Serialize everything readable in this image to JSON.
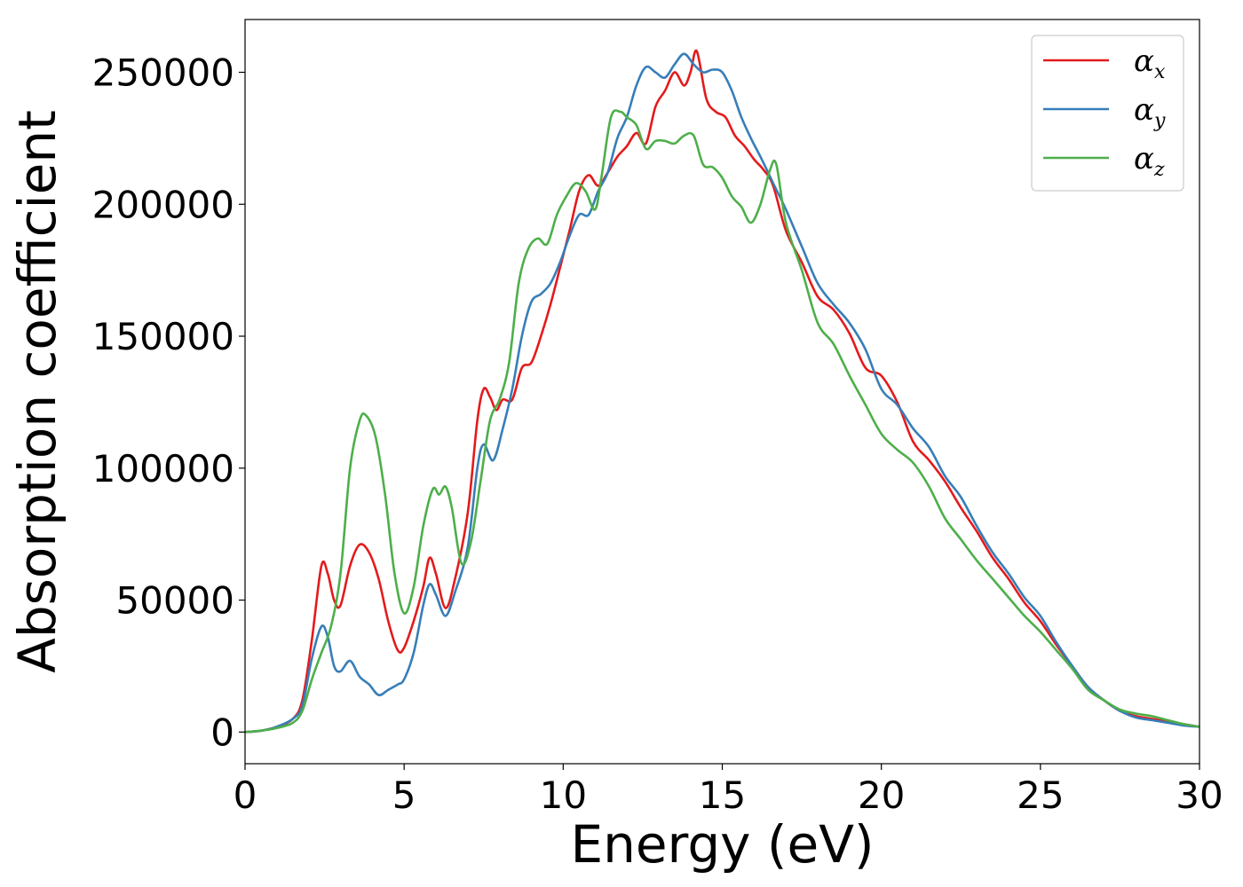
{
  "chart_data": {
    "type": "line",
    "title": "",
    "xlabel": "Energy (eV)",
    "ylabel": "Absorption coefficient",
    "xlim": [
      0,
      30
    ],
    "ylim": [
      -12000,
      270000
    ],
    "xticks": [
      0,
      5,
      10,
      15,
      20,
      25,
      30
    ],
    "xtick_labels": [
      "0",
      "5",
      "10",
      "15",
      "20",
      "25",
      "30"
    ],
    "yticks": [
      0,
      50000,
      100000,
      150000,
      200000,
      250000
    ],
    "ytick_labels": [
      "0",
      "50000",
      "100000",
      "150000",
      "200000",
      "250000"
    ],
    "grid": false,
    "legend_position": "top-right",
    "series": [
      {
        "name": "α_x",
        "base": "α",
        "sub": "x",
        "color": "#e41a1c",
        "points": [
          [
            0,
            0
          ],
          [
            0.5,
            500
          ],
          [
            1,
            2000
          ],
          [
            1.5,
            5000
          ],
          [
            1.8,
            12000
          ],
          [
            2.1,
            35000
          ],
          [
            2.4,
            63000
          ],
          [
            2.6,
            60000
          ],
          [
            2.8,
            50000
          ],
          [
            3.0,
            48000
          ],
          [
            3.3,
            63000
          ],
          [
            3.6,
            71000
          ],
          [
            3.9,
            68000
          ],
          [
            4.2,
            58000
          ],
          [
            4.5,
            42000
          ],
          [
            4.8,
            31000
          ],
          [
            5.0,
            32000
          ],
          [
            5.3,
            42000
          ],
          [
            5.6,
            55000
          ],
          [
            5.8,
            66000
          ],
          [
            6.0,
            60000
          ],
          [
            6.3,
            47000
          ],
          [
            6.6,
            58000
          ],
          [
            7.0,
            83000
          ],
          [
            7.3,
            118000
          ],
          [
            7.5,
            130000
          ],
          [
            7.7,
            127000
          ],
          [
            7.9,
            122000
          ],
          [
            8.1,
            126000
          ],
          [
            8.4,
            126000
          ],
          [
            8.7,
            138000
          ],
          [
            9.0,
            140000
          ],
          [
            9.3,
            150000
          ],
          [
            9.6,
            162000
          ],
          [
            9.9,
            176000
          ],
          [
            10.2,
            190000
          ],
          [
            10.5,
            205000
          ],
          [
            10.8,
            211000
          ],
          [
            11.1,
            207000
          ],
          [
            11.4,
            212000
          ],
          [
            11.7,
            218000
          ],
          [
            12.0,
            222000
          ],
          [
            12.3,
            227000
          ],
          [
            12.6,
            223000
          ],
          [
            12.9,
            237000
          ],
          [
            13.2,
            243000
          ],
          [
            13.5,
            250000
          ],
          [
            13.8,
            245000
          ],
          [
            14.0,
            250000
          ],
          [
            14.2,
            258000
          ],
          [
            14.5,
            240000
          ],
          [
            14.8,
            235000
          ],
          [
            15.1,
            233000
          ],
          [
            15.4,
            226000
          ],
          [
            15.7,
            222000
          ],
          [
            16.0,
            217000
          ],
          [
            16.3,
            213000
          ],
          [
            16.6,
            207000
          ],
          [
            17.0,
            190000
          ],
          [
            17.5,
            178000
          ],
          [
            18.0,
            165000
          ],
          [
            18.5,
            160000
          ],
          [
            19.0,
            151000
          ],
          [
            19.5,
            138000
          ],
          [
            20.0,
            135000
          ],
          [
            20.5,
            125000
          ],
          [
            21.0,
            110000
          ],
          [
            21.5,
            103000
          ],
          [
            22.0,
            95000
          ],
          [
            22.5,
            85000
          ],
          [
            23.0,
            76000
          ],
          [
            23.5,
            66000
          ],
          [
            24.0,
            58000
          ],
          [
            24.5,
            49000
          ],
          [
            25.0,
            42000
          ],
          [
            25.5,
            33000
          ],
          [
            26.0,
            25000
          ],
          [
            26.5,
            17000
          ],
          [
            27.0,
            12000
          ],
          [
            27.5,
            8000
          ],
          [
            28.0,
            6000
          ],
          [
            28.5,
            5000
          ],
          [
            29.0,
            4000
          ],
          [
            29.5,
            3000
          ],
          [
            30.0,
            2000
          ]
        ]
      },
      {
        "name": "α_y",
        "base": "α",
        "sub": "y",
        "color": "#377eb8",
        "points": [
          [
            0,
            0
          ],
          [
            0.5,
            500
          ],
          [
            1,
            2000
          ],
          [
            1.5,
            5000
          ],
          [
            1.8,
            10000
          ],
          [
            2.1,
            28000
          ],
          [
            2.4,
            40000
          ],
          [
            2.6,
            36000
          ],
          [
            2.8,
            25000
          ],
          [
            3.0,
            23000
          ],
          [
            3.3,
            27000
          ],
          [
            3.6,
            21000
          ],
          [
            3.9,
            18000
          ],
          [
            4.2,
            14000
          ],
          [
            4.5,
            16000
          ],
          [
            4.8,
            18000
          ],
          [
            5.0,
            20000
          ],
          [
            5.3,
            30000
          ],
          [
            5.6,
            48000
          ],
          [
            5.8,
            56000
          ],
          [
            6.0,
            52000
          ],
          [
            6.3,
            44000
          ],
          [
            6.6,
            53000
          ],
          [
            7.0,
            70000
          ],
          [
            7.3,
            100000
          ],
          [
            7.5,
            109000
          ],
          [
            7.8,
            103000
          ],
          [
            8.1,
            115000
          ],
          [
            8.4,
            130000
          ],
          [
            8.7,
            150000
          ],
          [
            9.0,
            163000
          ],
          [
            9.3,
            166000
          ],
          [
            9.6,
            170000
          ],
          [
            9.9,
            178000
          ],
          [
            10.2,
            188000
          ],
          [
            10.5,
            196000
          ],
          [
            10.8,
            196000
          ],
          [
            11.1,
            205000
          ],
          [
            11.4,
            212000
          ],
          [
            11.7,
            225000
          ],
          [
            12.0,
            233000
          ],
          [
            12.3,
            245000
          ],
          [
            12.6,
            252000
          ],
          [
            12.9,
            250000
          ],
          [
            13.2,
            248000
          ],
          [
            13.5,
            253000
          ],
          [
            13.8,
            257000
          ],
          [
            14.1,
            253000
          ],
          [
            14.4,
            250000
          ],
          [
            14.7,
            251000
          ],
          [
            15.0,
            250000
          ],
          [
            15.3,
            243000
          ],
          [
            15.6,
            233000
          ],
          [
            15.9,
            225000
          ],
          [
            16.2,
            218000
          ],
          [
            16.6,
            208000
          ],
          [
            17.0,
            198000
          ],
          [
            17.5,
            184000
          ],
          [
            18.0,
            170000
          ],
          [
            18.5,
            162000
          ],
          [
            19.0,
            155000
          ],
          [
            19.5,
            145000
          ],
          [
            20.0,
            130000
          ],
          [
            20.5,
            124000
          ],
          [
            21.0,
            115000
          ],
          [
            21.5,
            108000
          ],
          [
            22.0,
            97000
          ],
          [
            22.5,
            89000
          ],
          [
            23.0,
            78000
          ],
          [
            23.5,
            68000
          ],
          [
            24.0,
            60000
          ],
          [
            24.5,
            51000
          ],
          [
            25.0,
            44000
          ],
          [
            25.5,
            34000
          ],
          [
            26.0,
            25000
          ],
          [
            26.5,
            17000
          ],
          [
            27.0,
            12000
          ],
          [
            27.5,
            8000
          ],
          [
            28.0,
            5500
          ],
          [
            28.5,
            4500
          ],
          [
            29.0,
            3500
          ],
          [
            29.5,
            2500
          ],
          [
            30.0,
            2000
          ]
        ]
      },
      {
        "name": "α_z",
        "base": "α",
        "sub": "z",
        "color": "#4daf4a",
        "points": [
          [
            0,
            0
          ],
          [
            0.5,
            500
          ],
          [
            1,
            1500
          ],
          [
            1.5,
            3500
          ],
          [
            1.8,
            8000
          ],
          [
            2.1,
            20000
          ],
          [
            2.4,
            30000
          ],
          [
            2.7,
            40000
          ],
          [
            3.0,
            60000
          ],
          [
            3.3,
            100000
          ],
          [
            3.6,
            118000
          ],
          [
            3.8,
            120000
          ],
          [
            4.1,
            112000
          ],
          [
            4.4,
            90000
          ],
          [
            4.7,
            60000
          ],
          [
            5.0,
            45000
          ],
          [
            5.3,
            55000
          ],
          [
            5.6,
            78000
          ],
          [
            5.9,
            92000
          ],
          [
            6.1,
            90000
          ],
          [
            6.3,
            93000
          ],
          [
            6.5,
            85000
          ],
          [
            6.8,
            64000
          ],
          [
            7.1,
            72000
          ],
          [
            7.4,
            95000
          ],
          [
            7.7,
            118000
          ],
          [
            8.0,
            126000
          ],
          [
            8.3,
            140000
          ],
          [
            8.6,
            170000
          ],
          [
            8.9,
            183000
          ],
          [
            9.2,
            187000
          ],
          [
            9.5,
            185000
          ],
          [
            9.8,
            196000
          ],
          [
            10.1,
            203000
          ],
          [
            10.4,
            208000
          ],
          [
            10.7,
            205000
          ],
          [
            11.0,
            198000
          ],
          [
            11.2,
            210000
          ],
          [
            11.5,
            233000
          ],
          [
            11.8,
            235000
          ],
          [
            12.0,
            233000
          ],
          [
            12.3,
            230000
          ],
          [
            12.6,
            221000
          ],
          [
            12.9,
            224000
          ],
          [
            13.2,
            224000
          ],
          [
            13.5,
            223000
          ],
          [
            13.8,
            226000
          ],
          [
            14.1,
            226000
          ],
          [
            14.4,
            215000
          ],
          [
            14.7,
            214000
          ],
          [
            15.0,
            210000
          ],
          [
            15.3,
            203000
          ],
          [
            15.6,
            199000
          ],
          [
            15.9,
            193000
          ],
          [
            16.2,
            200000
          ],
          [
            16.5,
            213000
          ],
          [
            16.7,
            215000
          ],
          [
            17.0,
            193000
          ],
          [
            17.5,
            175000
          ],
          [
            18.0,
            155000
          ],
          [
            18.5,
            147000
          ],
          [
            19.0,
            135000
          ],
          [
            19.5,
            124000
          ],
          [
            20.0,
            113000
          ],
          [
            20.5,
            107000
          ],
          [
            21.0,
            102000
          ],
          [
            21.5,
            93000
          ],
          [
            22.0,
            81000
          ],
          [
            22.5,
            73000
          ],
          [
            23.0,
            65000
          ],
          [
            23.5,
            58000
          ],
          [
            24.0,
            51000
          ],
          [
            24.5,
            44000
          ],
          [
            25.0,
            38000
          ],
          [
            25.5,
            31000
          ],
          [
            26.0,
            24000
          ],
          [
            26.5,
            16000
          ],
          [
            27.0,
            12000
          ],
          [
            27.5,
            8500
          ],
          [
            28.0,
            7000
          ],
          [
            28.5,
            6000
          ],
          [
            29.0,
            4500
          ],
          [
            29.5,
            3000
          ],
          [
            30.0,
            2000
          ]
        ]
      }
    ]
  }
}
